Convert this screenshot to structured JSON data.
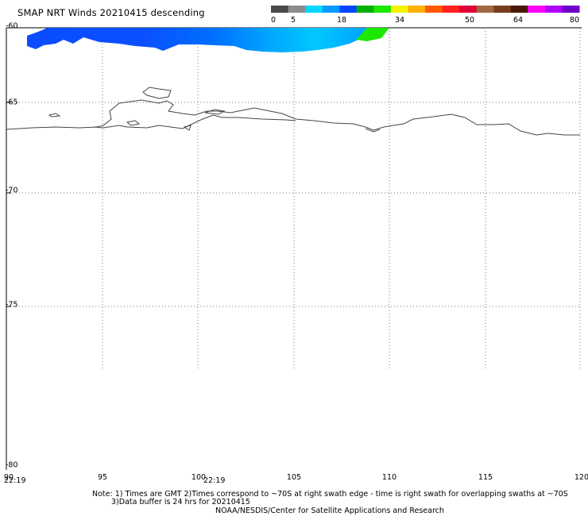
{
  "title": "SMAP NRT Winds  20210415 descending",
  "colorbar": {
    "segments": [
      {
        "color": "#4a4a4a"
      },
      {
        "color": "#8c8c8c"
      },
      {
        "color": "#00d8ff"
      },
      {
        "color": "#009cff"
      },
      {
        "color": "#0048ff"
      },
      {
        "color": "#00b000"
      },
      {
        "color": "#1ce800"
      },
      {
        "color": "#f4f400"
      },
      {
        "color": "#ffb000"
      },
      {
        "color": "#ff5a00"
      },
      {
        "color": "#ff2020"
      },
      {
        "color": "#e00038"
      },
      {
        "color": "#a06840"
      },
      {
        "color": "#7a3c20"
      },
      {
        "color": "#4a1808"
      },
      {
        "color": "#ff00ff"
      },
      {
        "color": "#b000ff"
      },
      {
        "color": "#7000c8"
      }
    ],
    "tick_labels": [
      "0",
      "5",
      "18",
      "34",
      "50",
      "64",
      "80"
    ]
  },
  "map": {
    "lat_labels": [
      "-60",
      "-65",
      "-70",
      "-75",
      "-80"
    ],
    "lon_labels": [
      "90",
      "95",
      "100",
      "105",
      "110",
      "115",
      "120"
    ],
    "time_labels": [
      "22:19",
      "22:19"
    ]
  },
  "footer": {
    "note_line1": "Note: 1) Times are GMT 2)Times correspond to ~70S at right swath edge - time is right swath for overlapping swaths at ~70S",
    "note_line2": "3)Data buffer is 24 hrs for 20210415",
    "credit": "NOAA/NESDIS/Center for Satellite Applications and Research"
  }
}
